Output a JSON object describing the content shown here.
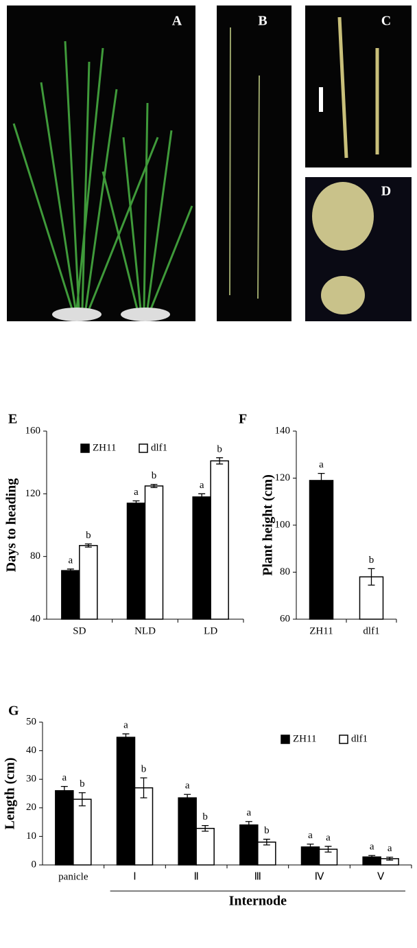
{
  "photo_labels": [
    "A",
    "B",
    "C",
    "D"
  ],
  "chart_data": [
    {
      "type": "bar",
      "label": "E",
      "ylabel": "Days to heading",
      "categories": [
        "SD",
        "NLD",
        "LD"
      ],
      "series": [
        {
          "name": "ZH11",
          "color": "#000000",
          "values": [
            71,
            114,
            118
          ],
          "errors": [
            1,
            1.5,
            2
          ],
          "letters": [
            "a",
            "a",
            "a"
          ]
        },
        {
          "name": "dlf1",
          "color": "#ffffff",
          "values": [
            87,
            125,
            141
          ],
          "errors": [
            1,
            1,
            2
          ],
          "letters": [
            "b",
            "b",
            "b"
          ]
        }
      ],
      "ylim": [
        40,
        160
      ],
      "yticks": [
        40,
        80,
        120,
        160
      ],
      "legend": "top-left"
    },
    {
      "type": "bar",
      "label": "F",
      "ylabel": "Plant height (cm)",
      "categories": [
        "ZH11",
        "dlf1"
      ],
      "values": [
        119,
        78
      ],
      "errors": [
        3,
        3.5
      ],
      "letters": [
        "a",
        "b"
      ],
      "colors": [
        "#000000",
        "#ffffff"
      ],
      "ylim": [
        60,
        140
      ],
      "yticks": [
        60,
        80,
        100,
        120,
        140
      ]
    },
    {
      "type": "bar",
      "label": "G",
      "ylabel": "Length (cm)",
      "xlabel": "Internode",
      "categories": [
        "panicle",
        "Ⅰ",
        "Ⅱ",
        "Ⅲ",
        "Ⅳ",
        "Ⅴ"
      ],
      "series": [
        {
          "name": "ZH11",
          "color": "#000000",
          "values": [
            26,
            44.7,
            23.5,
            14,
            6.3,
            2.8
          ],
          "errors": [
            1.5,
            1.2,
            1.2,
            1.2,
            1,
            0.5
          ],
          "letters": [
            "a",
            "a",
            "a",
            "a",
            "a",
            "a"
          ]
        },
        {
          "name": "dlf1",
          "color": "#ffffff",
          "values": [
            23,
            27,
            12.8,
            8,
            5.5,
            2.2
          ],
          "errors": [
            2.3,
            3.5,
            1,
            1,
            1,
            0.5
          ],
          "letters": [
            "b",
            "b",
            "b",
            "b",
            "a",
            "a"
          ]
        }
      ],
      "ylim": [
        0,
        50
      ],
      "yticks": [
        0,
        10,
        20,
        30,
        40,
        50
      ],
      "legend": "top-right"
    }
  ]
}
